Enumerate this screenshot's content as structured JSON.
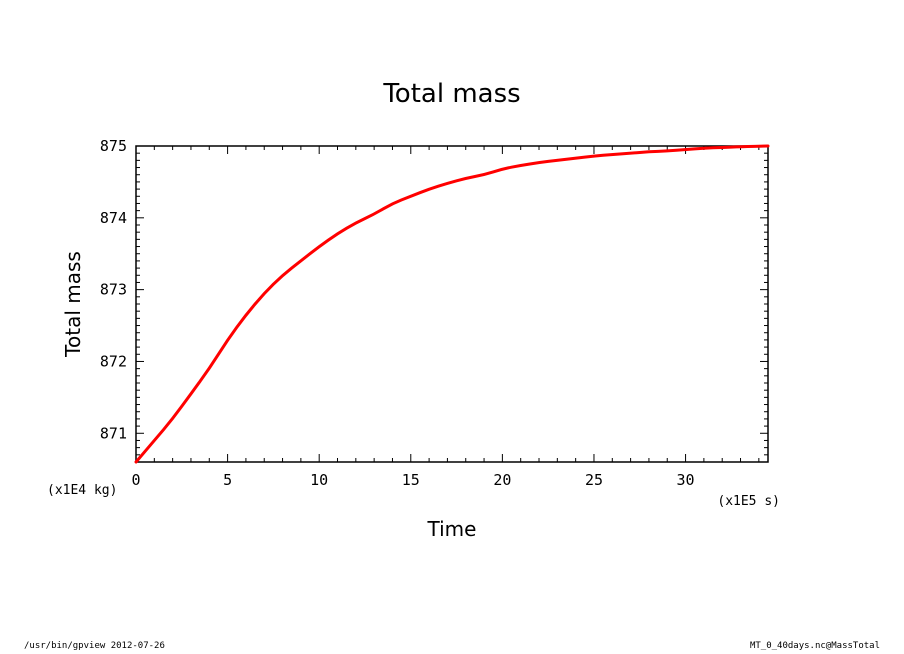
{
  "chart_data": {
    "type": "line",
    "title": "Total mass",
    "xlabel": "Time",
    "ylabel": "Total mass",
    "x_unit": "(x1E5 s)",
    "y_unit": "(x1E4 kg)",
    "xlim": [
      0,
      34.5
    ],
    "ylim": [
      870.6,
      875.0
    ],
    "x_ticks": [
      "0",
      "5",
      "10",
      "15",
      "20",
      "25",
      "30"
    ],
    "y_ticks": [
      "871",
      "872",
      "873",
      "874",
      "875"
    ],
    "grid": false,
    "line_color": "#ff0000",
    "series": [
      {
        "x": [
          0,
          1,
          2,
          3,
          4,
          5,
          6,
          7,
          8,
          9,
          10,
          11,
          12,
          13,
          14,
          15,
          16,
          17,
          18,
          19,
          20,
          21,
          22,
          23,
          24,
          25,
          26,
          27,
          28,
          29,
          30,
          31,
          32,
          33,
          34.5
        ],
        "values": [
          870.6,
          870.9,
          871.2,
          871.55,
          871.9,
          872.3,
          872.65,
          872.95,
          873.2,
          873.4,
          873.6,
          873.78,
          873.93,
          874.05,
          874.2,
          874.3,
          874.4,
          874.48,
          874.55,
          874.6,
          874.68,
          874.73,
          874.77,
          874.8,
          874.83,
          874.86,
          874.88,
          874.9,
          874.92,
          874.93,
          874.95,
          874.97,
          874.98,
          874.99,
          875.0
        ]
      }
    ]
  },
  "footer": {
    "left": "/usr/bin/gpview  2012-07-26",
    "right": "MT_0_40days.nc@MassTotal"
  }
}
